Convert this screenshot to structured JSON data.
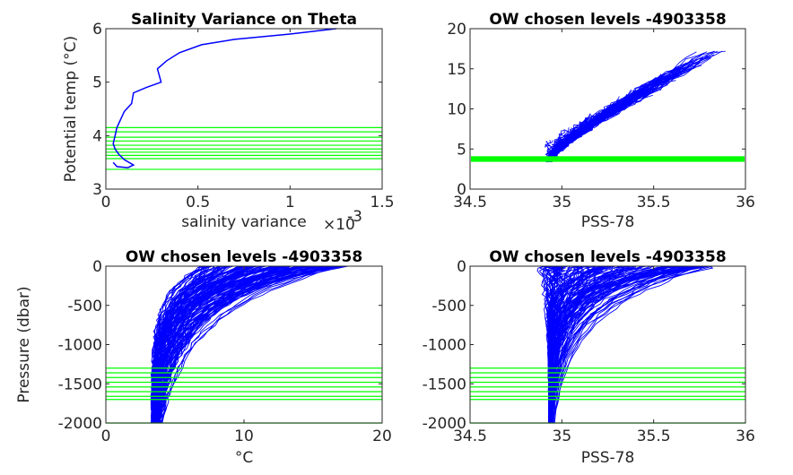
{
  "colors": {
    "profiles": "#0000ff",
    "levels": "#00ff00",
    "axes": "#262626"
  },
  "chart_data": [
    {
      "type": "line",
      "title": "Salinity Variance on Theta",
      "xlabel": "salinity variance",
      "x_exponent_label": "×10",
      "x_exponent_power": "-3",
      "ylabel": "Potential temp (°C)",
      "xlim": [
        0,
        1.5
      ],
      "ylim": [
        3,
        6
      ],
      "xticks": [
        0,
        0.5,
        1,
        1.5
      ],
      "yticks": [
        3,
        4,
        5,
        6
      ],
      "xtick_labels": [
        "0",
        "0.5",
        "1",
        "1.5"
      ],
      "ytick_labels": [
        "3",
        "4",
        "5",
        "6"
      ],
      "series": [
        {
          "values_x": [
            1.25,
            1.0,
            0.7,
            0.52,
            0.4,
            0.33,
            0.28,
            0.3,
            0.22,
            0.15,
            0.14,
            0.1,
            0.08,
            0.06,
            0.05,
            0.04,
            0.05,
            0.07,
            0.1,
            0.15,
            0.12,
            0.06,
            0.04
          ],
          "values_y": [
            6.0,
            5.9,
            5.8,
            5.7,
            5.55,
            5.4,
            5.25,
            5.0,
            4.9,
            4.8,
            4.6,
            4.45,
            4.3,
            4.15,
            4.0,
            3.85,
            3.75,
            3.65,
            3.55,
            3.45,
            3.4,
            3.42,
            3.5
          ]
        }
      ],
      "levels": [
        4.15,
        4.07,
        3.97,
        3.9,
        3.82,
        3.75,
        3.69,
        3.63,
        3.57,
        3.37
      ]
    },
    {
      "type": "line",
      "title": "OW chosen levels -4903358",
      "xlabel": "PSS-78",
      "ylabel": "",
      "xlim": [
        34.5,
        36
      ],
      "ylim": [
        0,
        20
      ],
      "xticks": [
        34.5,
        35,
        35.5,
        36
      ],
      "yticks": [
        0,
        5,
        10,
        15,
        20
      ],
      "xtick_labels": [
        "34.5",
        "35",
        "35.5",
        "36"
      ],
      "ytick_labels": [
        "0",
        "5",
        "10",
        "15",
        "20"
      ],
      "level_band": [
        3.4,
        4.1
      ]
    },
    {
      "type": "line",
      "title": "OW chosen levels -4903358",
      "xlabel": "°C",
      "ylabel": "Pressure (dbar)",
      "xlim": [
        0,
        20
      ],
      "ylim": [
        -2000,
        0
      ],
      "xticks": [
        0,
        10,
        20
      ],
      "yticks": [
        0,
        -500,
        -1000,
        -1500,
        -2000
      ],
      "xtick_labels": [
        "0",
        "10",
        "20"
      ],
      "ytick_labels": [
        "0",
        "-500",
        "-1000",
        "-1500",
        "-2000"
      ],
      "levels": [
        -1300,
        -1360,
        -1420,
        -1480,
        -1540,
        -1600,
        -1660,
        -1700,
        -2000
      ]
    },
    {
      "type": "line",
      "title": "OW chosen levels -4903358",
      "xlabel": "PSS-78",
      "ylabel": "",
      "xlim": [
        34.5,
        36
      ],
      "ylim": [
        -2000,
        0
      ],
      "xticks": [
        34.5,
        35,
        35.5,
        36
      ],
      "yticks": [
        0,
        -500,
        -1000,
        -1500,
        -2000
      ],
      "xtick_labels": [
        "34.5",
        "35",
        "35.5",
        "36"
      ],
      "ytick_labels": [
        "0",
        "-500",
        "-1000",
        "-1500",
        "-2000"
      ],
      "levels": [
        -1300,
        -1360,
        -1420,
        -1480,
        -1540,
        -1600,
        -1660,
        -1700,
        -2000
      ]
    }
  ]
}
